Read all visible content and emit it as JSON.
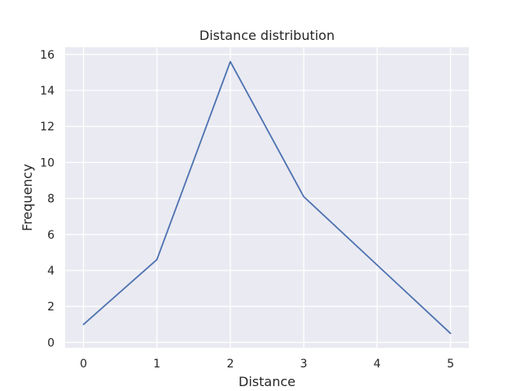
{
  "chart_data": {
    "type": "line",
    "title": "Distance distribution",
    "xlabel": "Distance",
    "ylabel": "Frequency",
    "x": [
      0,
      1,
      2,
      3,
      4,
      5
    ],
    "series": [
      {
        "values": [
          1.0,
          4.6,
          15.6,
          8.1,
          4.3,
          0.5
        ]
      }
    ],
    "xlim": [
      -0.25,
      5.25
    ],
    "ylim": [
      -0.3,
      16.4
    ],
    "xticks": [
      0,
      1,
      2,
      3,
      4,
      5
    ],
    "yticks": [
      0,
      2,
      4,
      6,
      8,
      10,
      12,
      14,
      16
    ],
    "grid": true,
    "legend": "none",
    "colors": {
      "line": "#4c72b0",
      "plot_background": "#eaeaf2",
      "grid": "#ffffff",
      "text": "#262626"
    }
  }
}
